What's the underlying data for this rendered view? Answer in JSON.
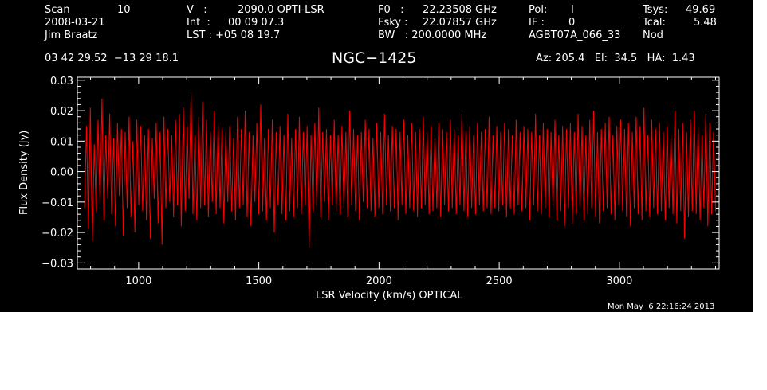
{
  "header": {
    "scan_label": "Scan",
    "scan_value": "10",
    "date": "2008-03-21",
    "observer": "Jim Braatz",
    "v_label": "V   :",
    "v_value": "2090.0 OPTI-LSR",
    "int_label": "Int  :",
    "int_value": "00 09 07.3",
    "lst_label": "LST : +05 08 19.7",
    "f0_label": "F0   :",
    "f0_value": "22.23508 GHz",
    "fsky_label": "Fsky :",
    "fsky_value": "22.07857 GHz",
    "bw_label": "BW   : 200.0000 MHz",
    "pol_label": "Pol:",
    "pol_value": "I",
    "if_label": "IF :",
    "if_value": "0",
    "project": "AGBT07A_066_33",
    "tsys_label": "Tsys:",
    "tsys_value": "49.69",
    "tcal_label": "Tcal:",
    "tcal_value": "5.48",
    "proc": "Nod",
    "coords": "03 42 29.52  −13 29 18.1",
    "source": "NGC−1425",
    "az_el_ha": "Az: 205.4   El:  34.5   HA:  1.43",
    "timestamp": "Mon May  6 22:16:24 2013"
  },
  "chart_data": {
    "type": "line",
    "xlabel": "LSR Velocity (km/s) OPTICAL",
    "ylabel": "Flux Density (Jy)",
    "xlim": [
      745,
      3415
    ],
    "ylim": [
      -0.032,
      0.031
    ],
    "xticks": [
      1000,
      1500,
      2000,
      2500,
      3000
    ],
    "xtick_labels": [
      "1000",
      "1500",
      "2000",
      "2500",
      "3000"
    ],
    "yticks": [
      -0.03,
      -0.02,
      -0.01,
      0.0,
      0.01,
      0.02,
      0.03
    ],
    "ytick_labels": [
      "−0.03",
      "−0.02",
      "−0.01",
      "0.00",
      "0.01",
      "0.02",
      "0.03"
    ],
    "grid": false,
    "colors": {
      "series": "#ff0000",
      "background": "#000000",
      "axes": "#ffffff"
    },
    "series": [
      {
        "x_start": 775,
        "x_end": 3400,
        "values": [
          -0.012,
          0.015,
          -0.019,
          0.021,
          -0.023,
          0.009,
          -0.013,
          0.017,
          -0.011,
          0.024,
          -0.016,
          0.012,
          -0.009,
          0.019,
          -0.014,
          0.011,
          -0.018,
          0.016,
          -0.008,
          0.014,
          -0.021,
          0.013,
          -0.012,
          0.018,
          -0.015,
          0.01,
          -0.02,
          0.017,
          -0.011,
          0.015,
          -0.013,
          0.012,
          -0.016,
          0.014,
          -0.022,
          0.011,
          -0.009,
          0.016,
          -0.017,
          0.013,
          -0.024,
          0.018,
          -0.012,
          0.014,
          -0.01,
          0.012,
          -0.015,
          0.017,
          -0.011,
          0.019,
          -0.018,
          0.021,
          -0.013,
          0.015,
          -0.009,
          0.026,
          -0.014,
          0.012,
          -0.016,
          0.018,
          -0.012,
          0.023,
          -0.011,
          0.017,
          -0.015,
          0.013,
          -0.01,
          0.02,
          -0.014,
          0.016,
          -0.012,
          0.014,
          -0.017,
          0.013,
          -0.01,
          0.015,
          -0.013,
          0.011,
          -0.016,
          0.018,
          -0.012,
          0.014,
          -0.011,
          0.02,
          -0.015,
          0.013,
          -0.018,
          0.012,
          -0.01,
          0.016,
          -0.014,
          0.022,
          -0.013,
          0.011,
          -0.016,
          0.014,
          -0.012,
          0.017,
          -0.02,
          0.013,
          -0.011,
          0.015,
          -0.014,
          0.012,
          -0.016,
          0.019,
          -0.013,
          0.011,
          -0.015,
          0.014,
          -0.012,
          0.018,
          -0.014,
          0.013,
          -0.011,
          0.015,
          -0.025,
          0.012,
          -0.013,
          0.016,
          -0.012,
          0.021,
          -0.015,
          0.013,
          -0.01,
          0.014,
          -0.016,
          0.012,
          -0.011,
          0.017,
          -0.013,
          0.012,
          -0.014,
          0.015,
          -0.012,
          0.013,
          -0.015,
          0.02,
          -0.011,
          0.014,
          -0.013,
          0.012,
          -0.016,
          0.013,
          -0.01,
          0.017,
          -0.012,
          0.014,
          -0.013,
          0.011,
          -0.015,
          0.016,
          -0.012,
          0.013,
          -0.014,
          0.019,
          -0.011,
          0.012,
          -0.013,
          0.015,
          -0.012,
          0.014,
          -0.016,
          0.013,
          -0.011,
          0.017,
          -0.014,
          0.012,
          -0.012,
          0.016,
          -0.013,
          0.013,
          -0.015,
          0.014,
          -0.012,
          0.018,
          -0.011,
          0.013,
          -0.014,
          0.015,
          -0.013,
          0.012,
          -0.012,
          0.016,
          -0.015,
          0.014,
          -0.011,
          0.013,
          -0.013,
          0.017,
          -0.012,
          0.014,
          -0.014,
          0.012,
          -0.011,
          0.019,
          -0.013,
          0.013,
          -0.015,
          0.015,
          -0.012,
          0.012,
          -0.014,
          0.016,
          -0.011,
          0.013,
          -0.013,
          0.014,
          -0.012,
          0.018,
          -0.014,
          0.012,
          -0.012,
          0.015,
          -0.013,
          0.013,
          -0.011,
          0.016,
          -0.015,
          0.014,
          -0.012,
          0.012,
          -0.014,
          0.017,
          -0.011,
          0.013,
          -0.013,
          0.015,
          -0.012,
          0.014,
          -0.016,
          0.013,
          -0.011,
          0.019,
          -0.013,
          0.012,
          -0.014,
          0.016,
          -0.012,
          0.014,
          -0.015,
          0.013,
          -0.012,
          0.017,
          -0.016,
          0.012,
          -0.013,
          0.015,
          -0.018,
          0.014,
          -0.012,
          0.016,
          -0.017,
          0.013,
          -0.014,
          0.019,
          -0.013,
          0.015,
          -0.016,
          0.012,
          -0.014,
          0.017,
          -0.012,
          0.02,
          -0.015,
          0.013,
          -0.017,
          0.014,
          -0.013,
          0.016,
          -0.012,
          0.018,
          -0.014,
          0.012,
          -0.016,
          0.015,
          -0.011,
          0.017,
          -0.013,
          0.014,
          -0.015,
          0.016,
          -0.018,
          0.013,
          -0.012,
          0.018,
          -0.014,
          0.015,
          -0.016,
          0.021,
          -0.013,
          0.012,
          -0.015,
          0.017,
          -0.012,
          0.014,
          -0.014,
          0.016,
          -0.013,
          0.013,
          -0.016,
          0.015,
          -0.012,
          0.012,
          -0.014,
          0.02,
          -0.017,
          0.014,
          -0.013,
          0.016,
          -0.022,
          0.013,
          -0.015,
          0.017,
          -0.013,
          0.02,
          -0.014,
          0.015,
          -0.016,
          0.012,
          -0.012,
          0.019,
          -0.018,
          0.016,
          -0.014,
          0.013,
          -0.013
        ]
      }
    ]
  }
}
